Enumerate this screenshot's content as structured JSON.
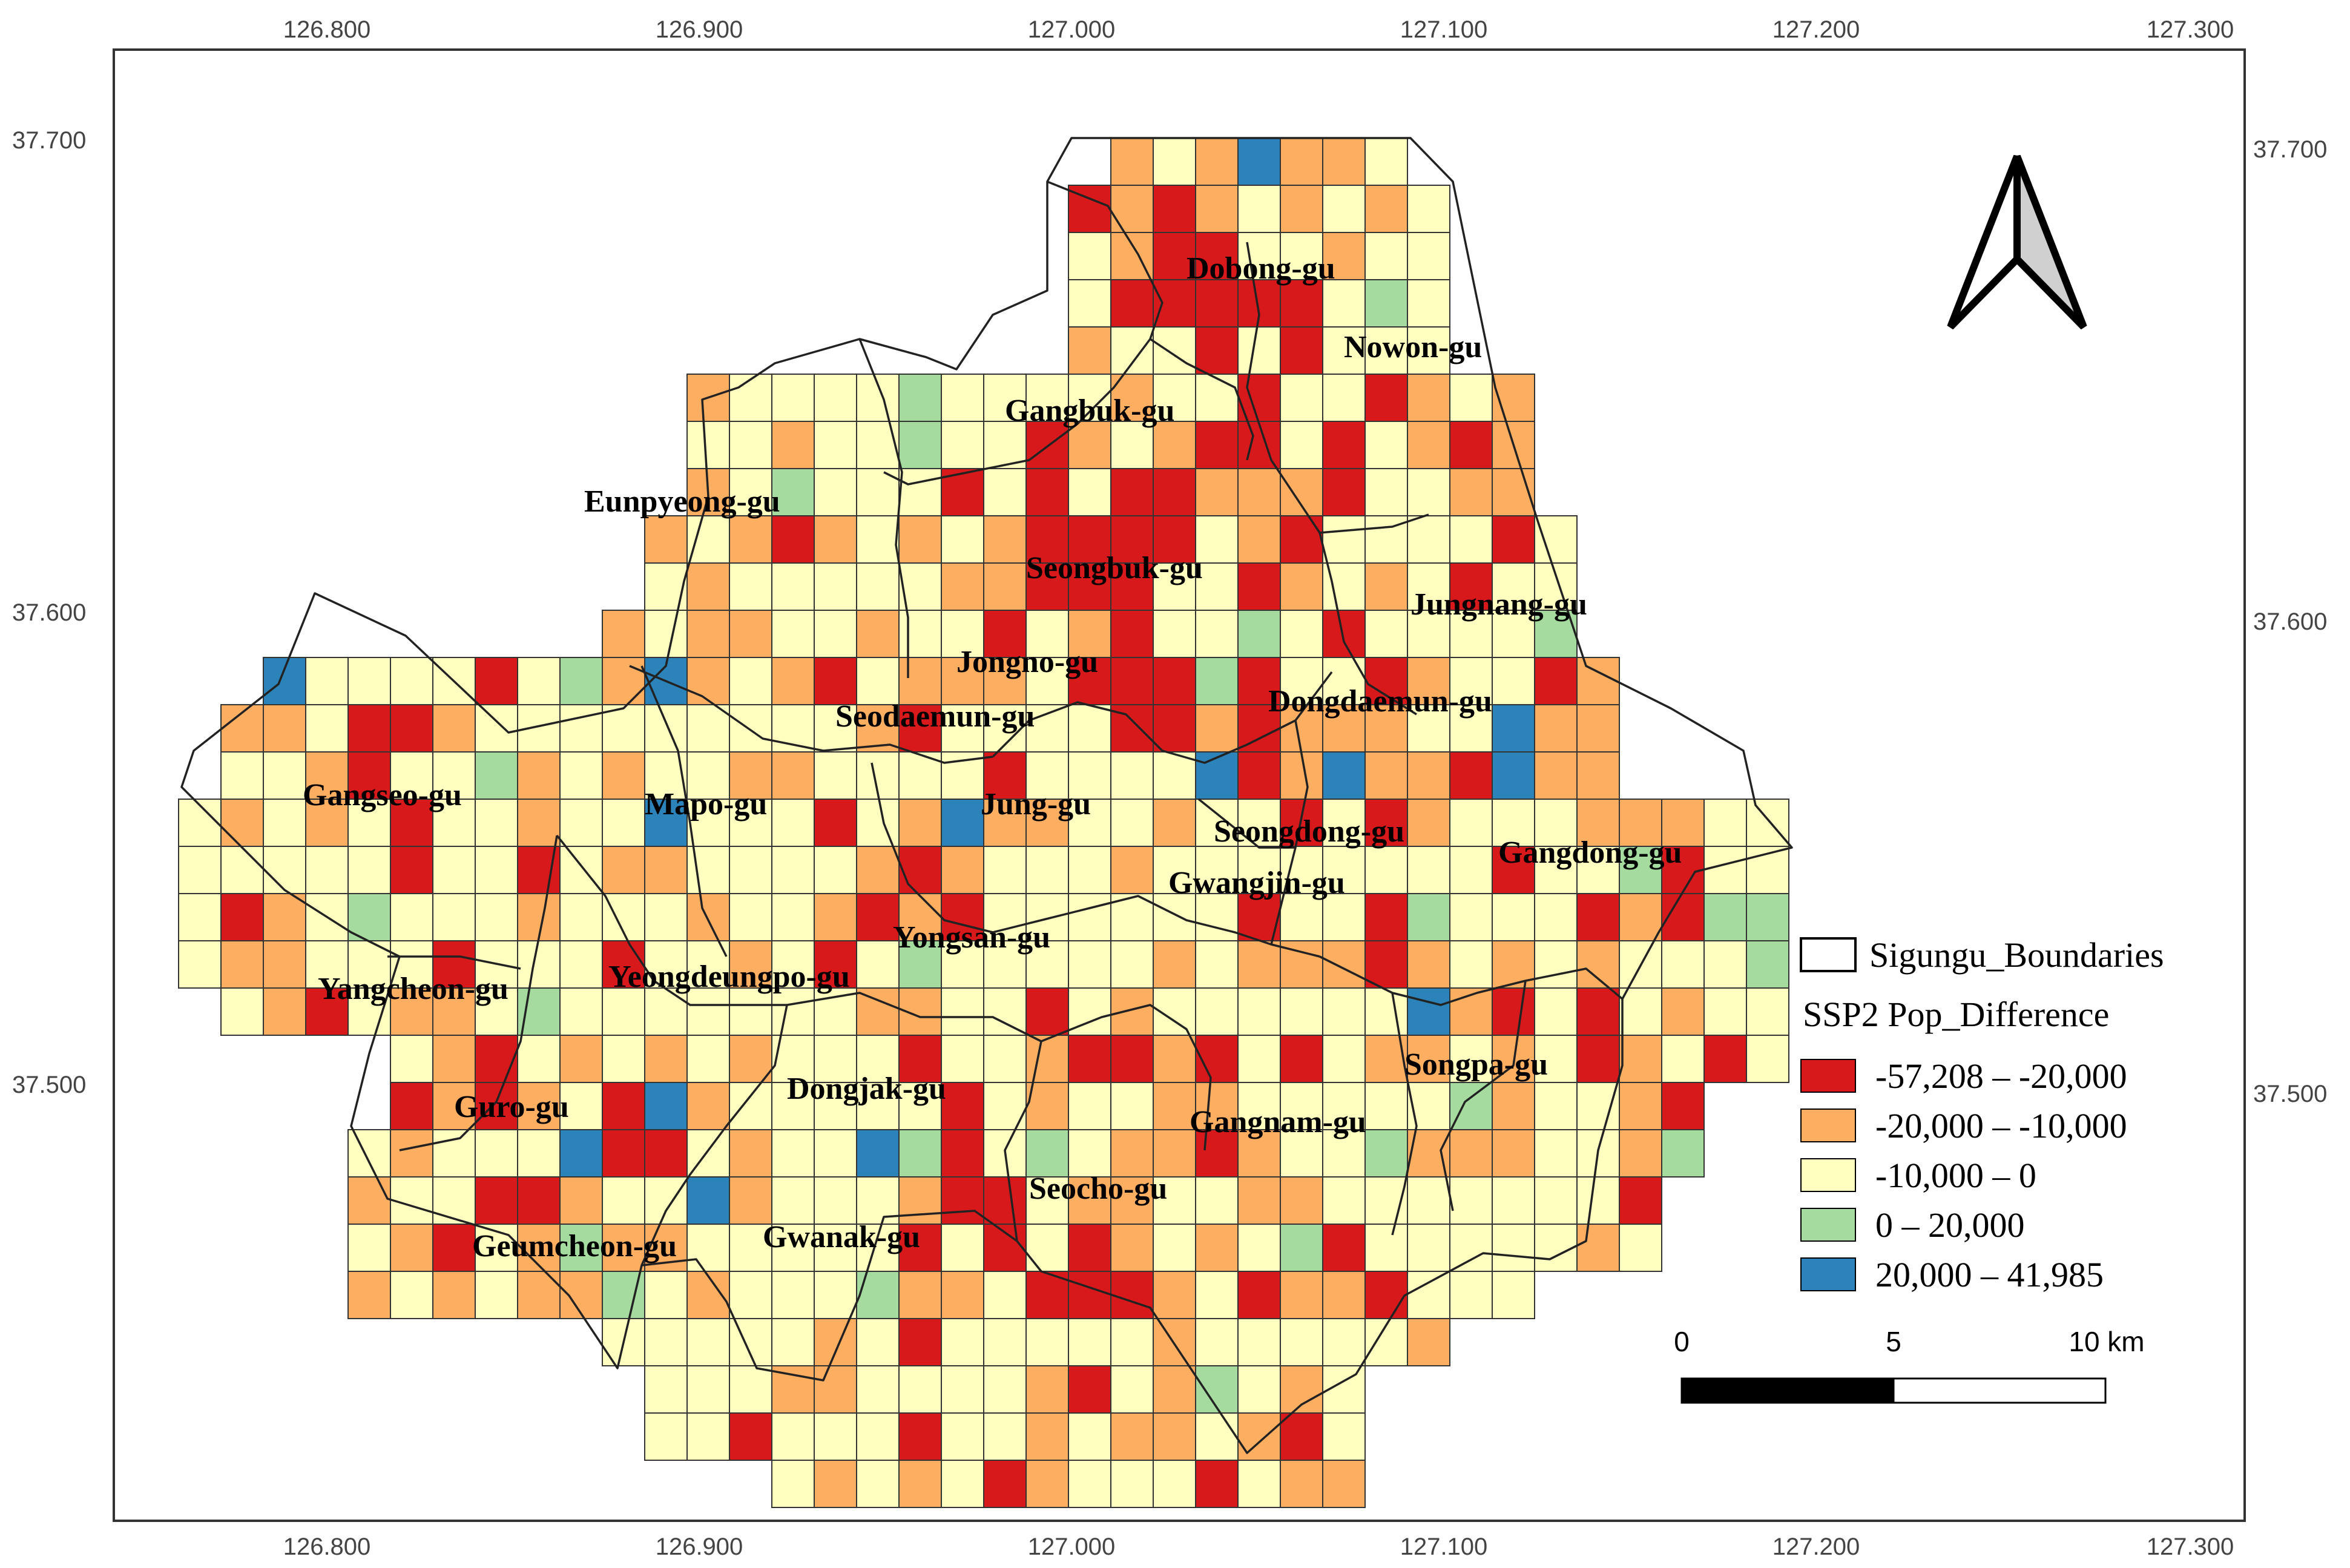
{
  "axes": {
    "x_ticks": [
      "126.800",
      "126.900",
      "127.000",
      "127.100",
      "127.200",
      "127.300"
    ],
    "y_ticks": [
      "37.700",
      "37.600",
      "37.500"
    ]
  },
  "districts": [
    {
      "name": "Dobong-gu"
    },
    {
      "name": "Nowon-gu"
    },
    {
      "name": "Gangbuk-gu"
    },
    {
      "name": "Eunpyeong-gu"
    },
    {
      "name": "Seongbuk-gu"
    },
    {
      "name": "Jungnang-gu"
    },
    {
      "name": "Jongno-gu"
    },
    {
      "name": "Dongdaemun-gu"
    },
    {
      "name": "Seodaemun-gu"
    },
    {
      "name": "Gangseo-gu"
    },
    {
      "name": "Mapo-gu"
    },
    {
      "name": "Jung-gu"
    },
    {
      "name": "Seongdong-gu"
    },
    {
      "name": "Gangdong-gu"
    },
    {
      "name": "Gwangjin-gu"
    },
    {
      "name": "Yongsan-gu"
    },
    {
      "name": "Yangcheon-gu"
    },
    {
      "name": "Yeongdeungpo-gu"
    },
    {
      "name": "Songpa-gu"
    },
    {
      "name": "Guro-gu"
    },
    {
      "name": "Dongjak-gu"
    },
    {
      "name": "Gangnam-gu"
    },
    {
      "name": "Seocho-gu"
    },
    {
      "name": "Geumcheon-gu"
    },
    {
      "name": "Gwanak-gu"
    }
  ],
  "legend": {
    "boundary_label": "Sigungu_Boundaries",
    "title": "SSP2 Pop_Difference",
    "classes": [
      {
        "label": "-57,208 – -20,000",
        "color": "#d7191c"
      },
      {
        "label": "-20,000 – -10,000",
        "color": "#fdae61"
      },
      {
        "label": "-10,000 – 0",
        "color": "#ffffc0"
      },
      {
        "label": "0 – 20,000",
        "color": "#a6dba0"
      },
      {
        "label": "20,000 – 41,985",
        "color": "#2b83ba"
      }
    ]
  },
  "scalebar": {
    "labels": [
      "0",
      "5",
      "10 km"
    ]
  },
  "north_arrow": {
    "icon": "north-arrow-icon"
  }
}
